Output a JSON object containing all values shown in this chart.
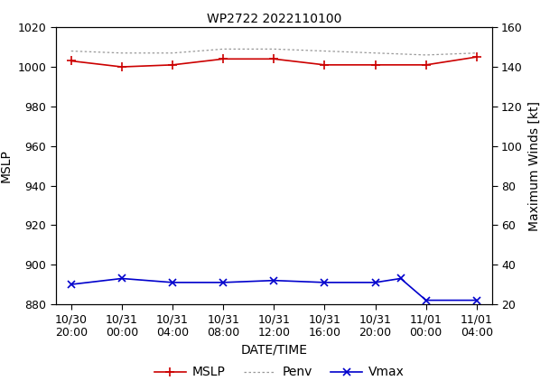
{
  "title": "WP2722 2022110100",
  "xlabel": "DATE/TIME",
  "ylabel_left": "MSLP",
  "ylabel_right": "Maximum Winds [kt]",
  "ylim_left": [
    880,
    1020
  ],
  "ylim_right": [
    20,
    160
  ],
  "yticks_left": [
    880,
    900,
    920,
    940,
    960,
    980,
    1000,
    1020
  ],
  "yticks_right": [
    20,
    40,
    60,
    80,
    100,
    120,
    140,
    160
  ],
  "x_labels": [
    "10/30\n20:00",
    "10/31\n00:00",
    "10/31\n04:00",
    "10/31\n08:00",
    "10/31\n12:00",
    "10/31\n16:00",
    "10/31\n20:00",
    "11/01\n00:00",
    "11/01\n04:00"
  ],
  "x_indices": [
    0,
    1,
    2,
    3,
    4,
    5,
    6,
    7,
    8
  ],
  "mslp_x": [
    0,
    1,
    2,
    3,
    4,
    5,
    6,
    7,
    8
  ],
  "mslp_y": [
    1003,
    1000,
    1001,
    1004,
    1004,
    1001,
    1001,
    1001,
    1005
  ],
  "penv_x": [
    0,
    1,
    2,
    3,
    4,
    5,
    6,
    7,
    8
  ],
  "penv_y": [
    1008,
    1007,
    1007,
    1009,
    1009,
    1008,
    1007,
    1006,
    1007
  ],
  "vmax_x": [
    0,
    1,
    2,
    3,
    4,
    5,
    6,
    6.5,
    7,
    8
  ],
  "vmax_y": [
    30,
    33,
    31,
    31,
    32,
    31,
    31,
    33,
    22,
    22
  ],
  "mslp_color": "#cc0000",
  "penv_color": "#999999",
  "vmax_color": "#0000cc",
  "bg_color": "#ffffff",
  "title_fontsize": 10,
  "label_fontsize": 10,
  "tick_fontsize": 9,
  "legend_fontsize": 10
}
